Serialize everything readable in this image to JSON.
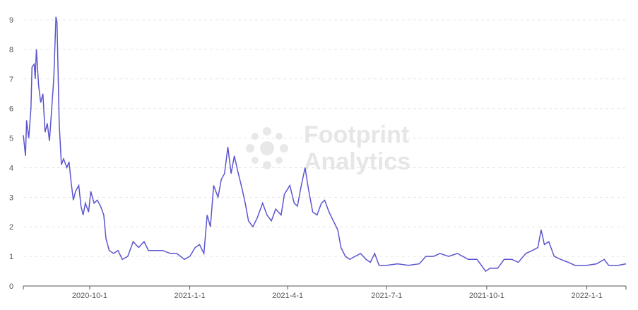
{
  "chart_data": {
    "type": "line",
    "watermark": "Footprint Analytics",
    "x": [
      "2020-8-1",
      "2020-8-3",
      "2020-8-4",
      "2020-8-6",
      "2020-8-8",
      "2020-8-9",
      "2020-8-11",
      "2020-8-12",
      "2020-8-13",
      "2020-8-15",
      "2020-8-17",
      "2020-8-19",
      "2020-8-21",
      "2020-8-23",
      "2020-8-25",
      "2020-8-29",
      "2020-8-31",
      "2020-9-1",
      "2020-9-3",
      "2020-9-5",
      "2020-9-7",
      "2020-9-10",
      "2020-9-12",
      "2020-9-14",
      "2020-9-16",
      "2020-9-18",
      "2020-9-21",
      "2020-9-23",
      "2020-9-25",
      "2020-9-27",
      "2020-9-30",
      "2020-10-2",
      "2020-10-5",
      "2020-10-8",
      "2020-10-11",
      "2020-10-14",
      "2020-10-16",
      "2020-10-19",
      "2020-10-23",
      "2020-10-27",
      "2020-10-31",
      "2020-11-5",
      "2020-11-10",
      "2020-11-15",
      "2020-11-20",
      "2020-11-24",
      "2020-12-1",
      "2020-12-7",
      "2020-12-14",
      "2020-12-20",
      "2020-12-27",
      "2021-1-1",
      "2021-1-6",
      "2021-1-10",
      "2021-1-14",
      "2021-1-17",
      "2021-1-20",
      "2021-1-23",
      "2021-1-27",
      "2021-1-30",
      "2021-2-2",
      "2021-2-5",
      "2021-2-8",
      "2021-2-11",
      "2021-2-14",
      "2021-2-18",
      "2021-2-21",
      "2021-2-24",
      "2021-2-28",
      "2021-3-4",
      "2021-3-9",
      "2021-3-13",
      "2021-3-17",
      "2021-3-21",
      "2021-3-26",
      "2021-3-29",
      "2021-4-3",
      "2021-4-7",
      "2021-4-10",
      "2021-4-13",
      "2021-4-17",
      "2021-4-20",
      "2021-4-24",
      "2021-4-28",
      "2021-5-2",
      "2021-5-5",
      "2021-5-9",
      "2021-5-13",
      "2021-5-17",
      "2021-5-20",
      "2021-5-24",
      "2021-5-28",
      "2021-6-2",
      "2021-6-7",
      "2021-6-12",
      "2021-6-16",
      "2021-6-20",
      "2021-6-24",
      "2021-7-1",
      "2021-7-11",
      "2021-7-21",
      "2021-7-31",
      "2021-8-6",
      "2021-8-13",
      "2021-8-19",
      "2021-8-27",
      "2021-9-4",
      "2021-9-14",
      "2021-9-22",
      "2021-9-30",
      "2021-10-4",
      "2021-10-11",
      "2021-10-17",
      "2021-10-24",
      "2021-10-30",
      "2021-11-6",
      "2021-11-12",
      "2021-11-17",
      "2021-11-20",
      "2021-11-23",
      "2021-11-27",
      "2021-12-2",
      "2021-12-8",
      "2021-12-15",
      "2021-12-21",
      "2022-1-1",
      "2022-1-10",
      "2022-1-17",
      "2022-1-21",
      "2022-1-30",
      "2022-2-6"
    ],
    "series": [
      {
        "color": "#5b56cf",
        "values": [
          5.1,
          4.4,
          5.6,
          5.0,
          6.0,
          7.4,
          7.5,
          7.0,
          8.0,
          6.8,
          6.2,
          6.5,
          5.2,
          5.5,
          4.9,
          7.0,
          9.1,
          8.9,
          5.5,
          4.1,
          4.3,
          4.0,
          4.2,
          3.5,
          2.9,
          3.2,
          3.4,
          2.7,
          2.4,
          2.8,
          2.5,
          3.2,
          2.8,
          2.9,
          2.7,
          2.4,
          1.6,
          1.2,
          1.1,
          1.2,
          0.9,
          1.0,
          1.5,
          1.3,
          1.5,
          1.2,
          1.2,
          1.2,
          1.1,
          1.1,
          0.9,
          1.0,
          1.3,
          1.4,
          1.1,
          2.4,
          2.0,
          3.4,
          3.0,
          3.6,
          3.8,
          4.7,
          3.8,
          4.4,
          3.9,
          3.3,
          2.8,
          2.2,
          2.0,
          2.3,
          2.8,
          2.4,
          2.2,
          2.6,
          2.4,
          3.1,
          3.4,
          2.8,
          2.7,
          3.3,
          4.0,
          3.3,
          2.5,
          2.4,
          2.8,
          2.9,
          2.5,
          2.2,
          1.9,
          1.3,
          1.0,
          0.9,
          1.0,
          1.1,
          0.9,
          0.8,
          1.1,
          0.7,
          0.7,
          0.75,
          0.7,
          0.75,
          1.0,
          1.0,
          1.1,
          1.0,
          1.1,
          0.9,
          0.9,
          0.5,
          0.6,
          0.6,
          0.9,
          0.9,
          0.8,
          1.1,
          1.2,
          1.3,
          1.9,
          1.4,
          1.5,
          1.0,
          0.9,
          0.8,
          0.7,
          0.7,
          0.75,
          0.9,
          0.7,
          0.7,
          0.75
        ]
      }
    ],
    "xlim": [
      "2020-8-1",
      "2022-2-6"
    ],
    "xticks": [
      "2020-10-1",
      "2021-1-1",
      "2021-4-1",
      "2021-7-1",
      "2021-10-1",
      "2022-1-1"
    ],
    "ylim": [
      0,
      9
    ],
    "yticks": [
      0,
      1,
      2,
      3,
      4,
      5,
      6,
      7,
      8,
      9
    ],
    "grid": true
  }
}
